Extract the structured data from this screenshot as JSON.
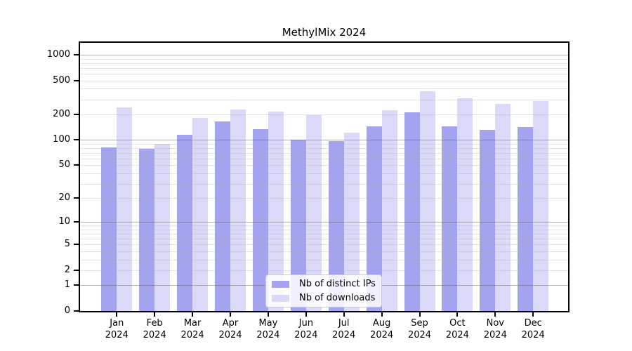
{
  "chart_data": {
    "type": "bar",
    "title": "MethylMix 2024",
    "categories": [
      "Jan",
      "Feb",
      "Mar",
      "Apr",
      "May",
      "Jun",
      "Jul",
      "Aug",
      "Sep",
      "Oct",
      "Nov",
      "Dec"
    ],
    "category_year": "2024",
    "series": [
      {
        "name": "Nb of distinct IPs",
        "color": "#a3a3ef",
        "values": [
          81,
          78,
          114,
          166,
          135,
          100,
          97,
          145,
          210,
          145,
          130,
          141
        ]
      },
      {
        "name": "Nb of downloads",
        "color": "#dadaf8",
        "values": [
          243,
          90,
          183,
          228,
          217,
          196,
          121,
          224,
          370,
          310,
          267,
          288
        ]
      }
    ],
    "yscale": "log10(1+x)",
    "ylim": [
      0,
      1000
    ],
    "ytick_labels": [
      1000,
      500,
      200,
      100,
      50,
      20,
      10,
      5,
      2,
      1,
      0
    ],
    "major_gridlines": [
      1,
      10,
      100,
      1000
    ],
    "minor_gridlines": [
      2,
      3,
      4,
      5,
      6,
      7,
      8,
      9,
      20,
      30,
      40,
      50,
      60,
      70,
      80,
      90,
      200,
      300,
      400,
      500,
      600,
      700,
      800,
      900
    ],
    "grid": true,
    "legend_position": "inside-bottom-center",
    "colors": {
      "bar_distinct_ips": "#a3a3ef",
      "bar_downloads": "#dadaf8",
      "major_grid": "#666666",
      "minor_grid": "#aaaaaa",
      "axis": "#000000",
      "text": "#000000",
      "background": "#ffffff"
    }
  }
}
